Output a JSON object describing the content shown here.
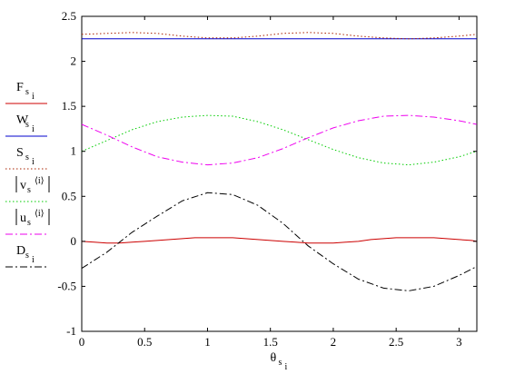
{
  "chart_data": {
    "type": "line",
    "title": "",
    "xlabel": "θ",
    "xlabel_sub": "s",
    "xlabel_subsub": "i",
    "ylabel": "",
    "xlim": [
      0,
      3.14159
    ],
    "ylim": [
      -1,
      2.5
    ],
    "grid": false,
    "legend_position": "left",
    "x_ticks": [
      0,
      0.5,
      1,
      1.5,
      2,
      2.5,
      3
    ],
    "y_ticks": [
      -1,
      -0.5,
      0,
      0.5,
      1,
      1.5,
      2,
      2.5
    ],
    "x_tick_labels": [
      "0",
      "0.5",
      "1",
      "1.5",
      "2",
      "2.5",
      "3"
    ],
    "y_tick_labels": [
      "-1",
      "-0.5",
      "0",
      "0.5",
      "1",
      "1.5",
      "2",
      "2.5"
    ],
    "series": [
      {
        "name": "Fs_i",
        "label_main": "F",
        "label_sub": "s",
        "label_subsub": "i",
        "color": "#cc0000",
        "style": "solid",
        "x": [
          0,
          0.1,
          0.2,
          0.3,
          0.4,
          0.5,
          0.6,
          0.7,
          0.8,
          0.9,
          1.0,
          1.1,
          1.2,
          1.3,
          1.4,
          1.5,
          1.6,
          1.7,
          1.8,
          1.9,
          2.0,
          2.1,
          2.2,
          2.3,
          2.4,
          2.5,
          2.6,
          2.7,
          2.8,
          2.9,
          3.0,
          3.1,
          3.14
        ],
        "y": [
          0.0,
          -0.01,
          -0.02,
          -0.02,
          -0.01,
          0.0,
          0.01,
          0.02,
          0.03,
          0.04,
          0.04,
          0.04,
          0.04,
          0.03,
          0.02,
          0.01,
          0.0,
          -0.01,
          -0.02,
          -0.02,
          -0.02,
          -0.01,
          0.0,
          0.02,
          0.03,
          0.04,
          0.04,
          0.04,
          0.04,
          0.03,
          0.02,
          0.01,
          0.0
        ]
      },
      {
        "name": "Ws_i",
        "label_main": "W",
        "label_sub": "s",
        "label_subsub": "i",
        "color": "#0000cc",
        "style": "solid",
        "x": [
          0,
          3.14
        ],
        "y": [
          2.25,
          2.25
        ]
      },
      {
        "name": "Ss_i",
        "label_main": "S",
        "label_sub": "s",
        "label_subsub": "i",
        "color": "#aa2200",
        "style": "dotted",
        "x": [
          0,
          0.2,
          0.4,
          0.6,
          0.8,
          1.0,
          1.2,
          1.4,
          1.6,
          1.8,
          2.0,
          2.2,
          2.4,
          2.6,
          2.8,
          3.0,
          3.14
        ],
        "y": [
          2.3,
          2.31,
          2.32,
          2.31,
          2.28,
          2.26,
          2.26,
          2.28,
          2.31,
          2.32,
          2.31,
          2.28,
          2.26,
          2.25,
          2.26,
          2.28,
          2.3
        ]
      },
      {
        "name": "|vs<i>|",
        "label_main": "v",
        "label_sub": "s",
        "label_sup": "⟨i⟩",
        "color": "#00cc00",
        "style": "dotted",
        "x": [
          0,
          0.2,
          0.4,
          0.6,
          0.8,
          1.0,
          1.2,
          1.4,
          1.6,
          1.8,
          2.0,
          2.2,
          2.4,
          2.6,
          2.8,
          3.0,
          3.14
        ],
        "y": [
          1.0,
          1.12,
          1.24,
          1.33,
          1.38,
          1.4,
          1.39,
          1.33,
          1.24,
          1.13,
          1.02,
          0.93,
          0.87,
          0.85,
          0.88,
          0.94,
          1.0
        ]
      },
      {
        "name": "|us<i>|",
        "label_main": "u",
        "label_sub": "s",
        "label_sup": "⟨i⟩",
        "color": "#ee00ee",
        "style": "dashdot",
        "x": [
          0,
          0.2,
          0.4,
          0.6,
          0.8,
          1.0,
          1.2,
          1.4,
          1.6,
          1.8,
          2.0,
          2.2,
          2.4,
          2.6,
          2.8,
          3.0,
          3.14
        ],
        "y": [
          1.3,
          1.18,
          1.05,
          0.94,
          0.88,
          0.85,
          0.87,
          0.93,
          1.03,
          1.15,
          1.26,
          1.34,
          1.39,
          1.4,
          1.38,
          1.34,
          1.3
        ]
      },
      {
        "name": "Ds_i",
        "label_main": "D",
        "label_sub": "s",
        "label_subsub": "i",
        "color": "#000000",
        "style": "dashdot",
        "x": [
          0,
          0.2,
          0.4,
          0.6,
          0.8,
          1.0,
          1.2,
          1.4,
          1.6,
          1.8,
          2.0,
          2.2,
          2.4,
          2.6,
          2.8,
          3.0,
          3.14
        ],
        "y": [
          -0.3,
          -0.12,
          0.1,
          0.28,
          0.45,
          0.54,
          0.52,
          0.4,
          0.2,
          -0.05,
          -0.25,
          -0.42,
          -0.52,
          -0.55,
          -0.5,
          -0.38,
          -0.28
        ]
      }
    ]
  }
}
